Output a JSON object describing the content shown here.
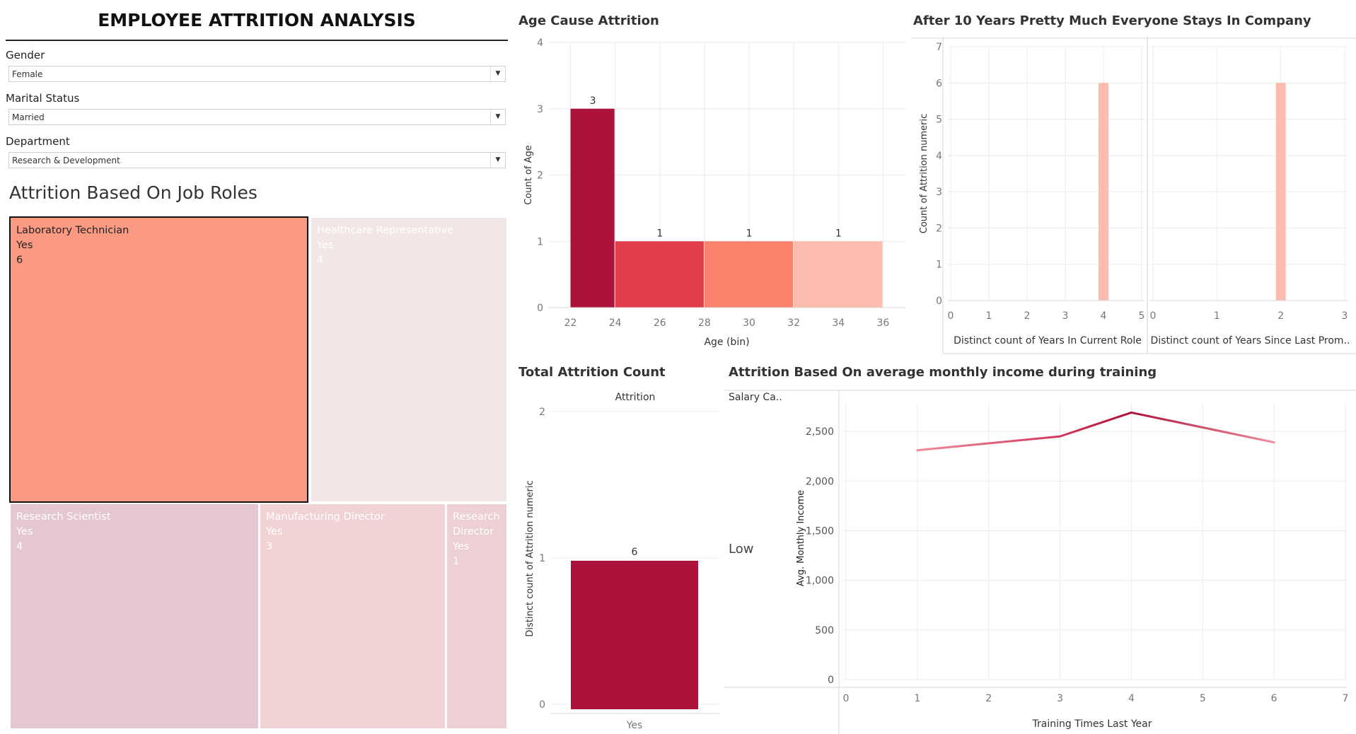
{
  "dashboard": {
    "title": "EMPLOYEE ATTRITION ANALYSIS",
    "filters": [
      {
        "label": "Gender",
        "value": "Female"
      },
      {
        "label": "Marital Status",
        "value": "Married"
      },
      {
        "label": "Department",
        "value": "Research & Development"
      }
    ]
  },
  "treemap": {
    "title": "Attrition Based On Job Roles",
    "tiles": [
      {
        "role": "Laboratory Technician",
        "attrition": "Yes",
        "count": "6",
        "color": "#fb9a82",
        "selected": true
      },
      {
        "role": "Healthcare Representative",
        "attrition": "Yes",
        "count": "4",
        "color": "#f3e6e6"
      },
      {
        "role": "Research Scientist",
        "attrition": "Yes",
        "count": "4",
        "color": "#e5c8cf"
      },
      {
        "role": "Manufacturing Director",
        "attrition": "Yes",
        "count": "3",
        "color": "#f1d3d6"
      },
      {
        "role_line1": "Research",
        "role_line2": "Director",
        "attrition": "Yes",
        "count": "1",
        "color": "#ecd0d5"
      }
    ]
  },
  "chart_data": [
    {
      "type": "bar",
      "title": "Age Cause Attrition",
      "xlabel": "Age (bin)",
      "ylabel": "Count of Age",
      "bins": [
        [
          22,
          24
        ],
        [
          24,
          28
        ],
        [
          28,
          32
        ],
        [
          32,
          36
        ]
      ],
      "values": [
        3,
        1,
        1,
        1
      ],
      "colors": [
        "#ad133a",
        "#e03e4b",
        "#f9826c",
        "#fcbcae"
      ],
      "x_ticks": [
        "22",
        "24",
        "26",
        "28",
        "30",
        "32",
        "34",
        "36"
      ],
      "y_ticks": [
        "0",
        "1",
        "2",
        "3",
        "4"
      ],
      "ylim": [
        0,
        4
      ],
      "xlim": [
        21,
        37
      ]
    },
    {
      "type": "bar",
      "title": "After 10 Years Pretty  Much Everyone Stays In Company",
      "ylabel": "Count of Attrition numeric",
      "y_ticks": [
        "0",
        "1",
        "2",
        "3",
        "4",
        "5",
        "6",
        "7"
      ],
      "ylim": [
        0,
        7
      ],
      "panels": [
        {
          "xlabel": "Distinct count of Years In Current Role",
          "x_ticks": [
            "0",
            "1",
            "2",
            "3",
            "4",
            "5"
          ],
          "xlim": [
            0,
            5
          ],
          "x": [
            4
          ],
          "values": [
            6
          ]
        },
        {
          "xlabel": "Distinct count of Years Since Last Prom..",
          "x_ticks": [
            "0",
            "1",
            "2",
            "3"
          ],
          "xlim": [
            0,
            3
          ],
          "x": [
            2
          ],
          "values": [
            6
          ]
        }
      ],
      "color": "#fcbcae"
    },
    {
      "type": "bar",
      "title": "Total Attrition Count",
      "column_header": "Attrition",
      "ylabel": "Distinct count of Attrition numeric",
      "categories": [
        "Yes"
      ],
      "values": [
        1
      ],
      "data_labels": [
        "6"
      ],
      "y_ticks": [
        "0",
        "1",
        "2"
      ],
      "ylim": [
        0,
        2
      ],
      "color": "#ad133a"
    },
    {
      "type": "line",
      "title": "Attrition Based On average monthly income during training",
      "row_header": "Salary Ca..",
      "row_label": "Low",
      "xlabel": "Training Times Last Year",
      "ylabel": "Avg. Monthly Income",
      "x": [
        1,
        3,
        4,
        6
      ],
      "values": [
        2310,
        2450,
        2690,
        2390
      ],
      "x_ticks": [
        "0",
        "1",
        "2",
        "3",
        "4",
        "5",
        "6",
        "7"
      ],
      "y_ticks": [
        "0",
        "500",
        "1,000",
        "1,500",
        "2,000",
        "2,500"
      ],
      "xlim": [
        0,
        7
      ],
      "ylim": [
        0,
        2800
      ]
    }
  ]
}
